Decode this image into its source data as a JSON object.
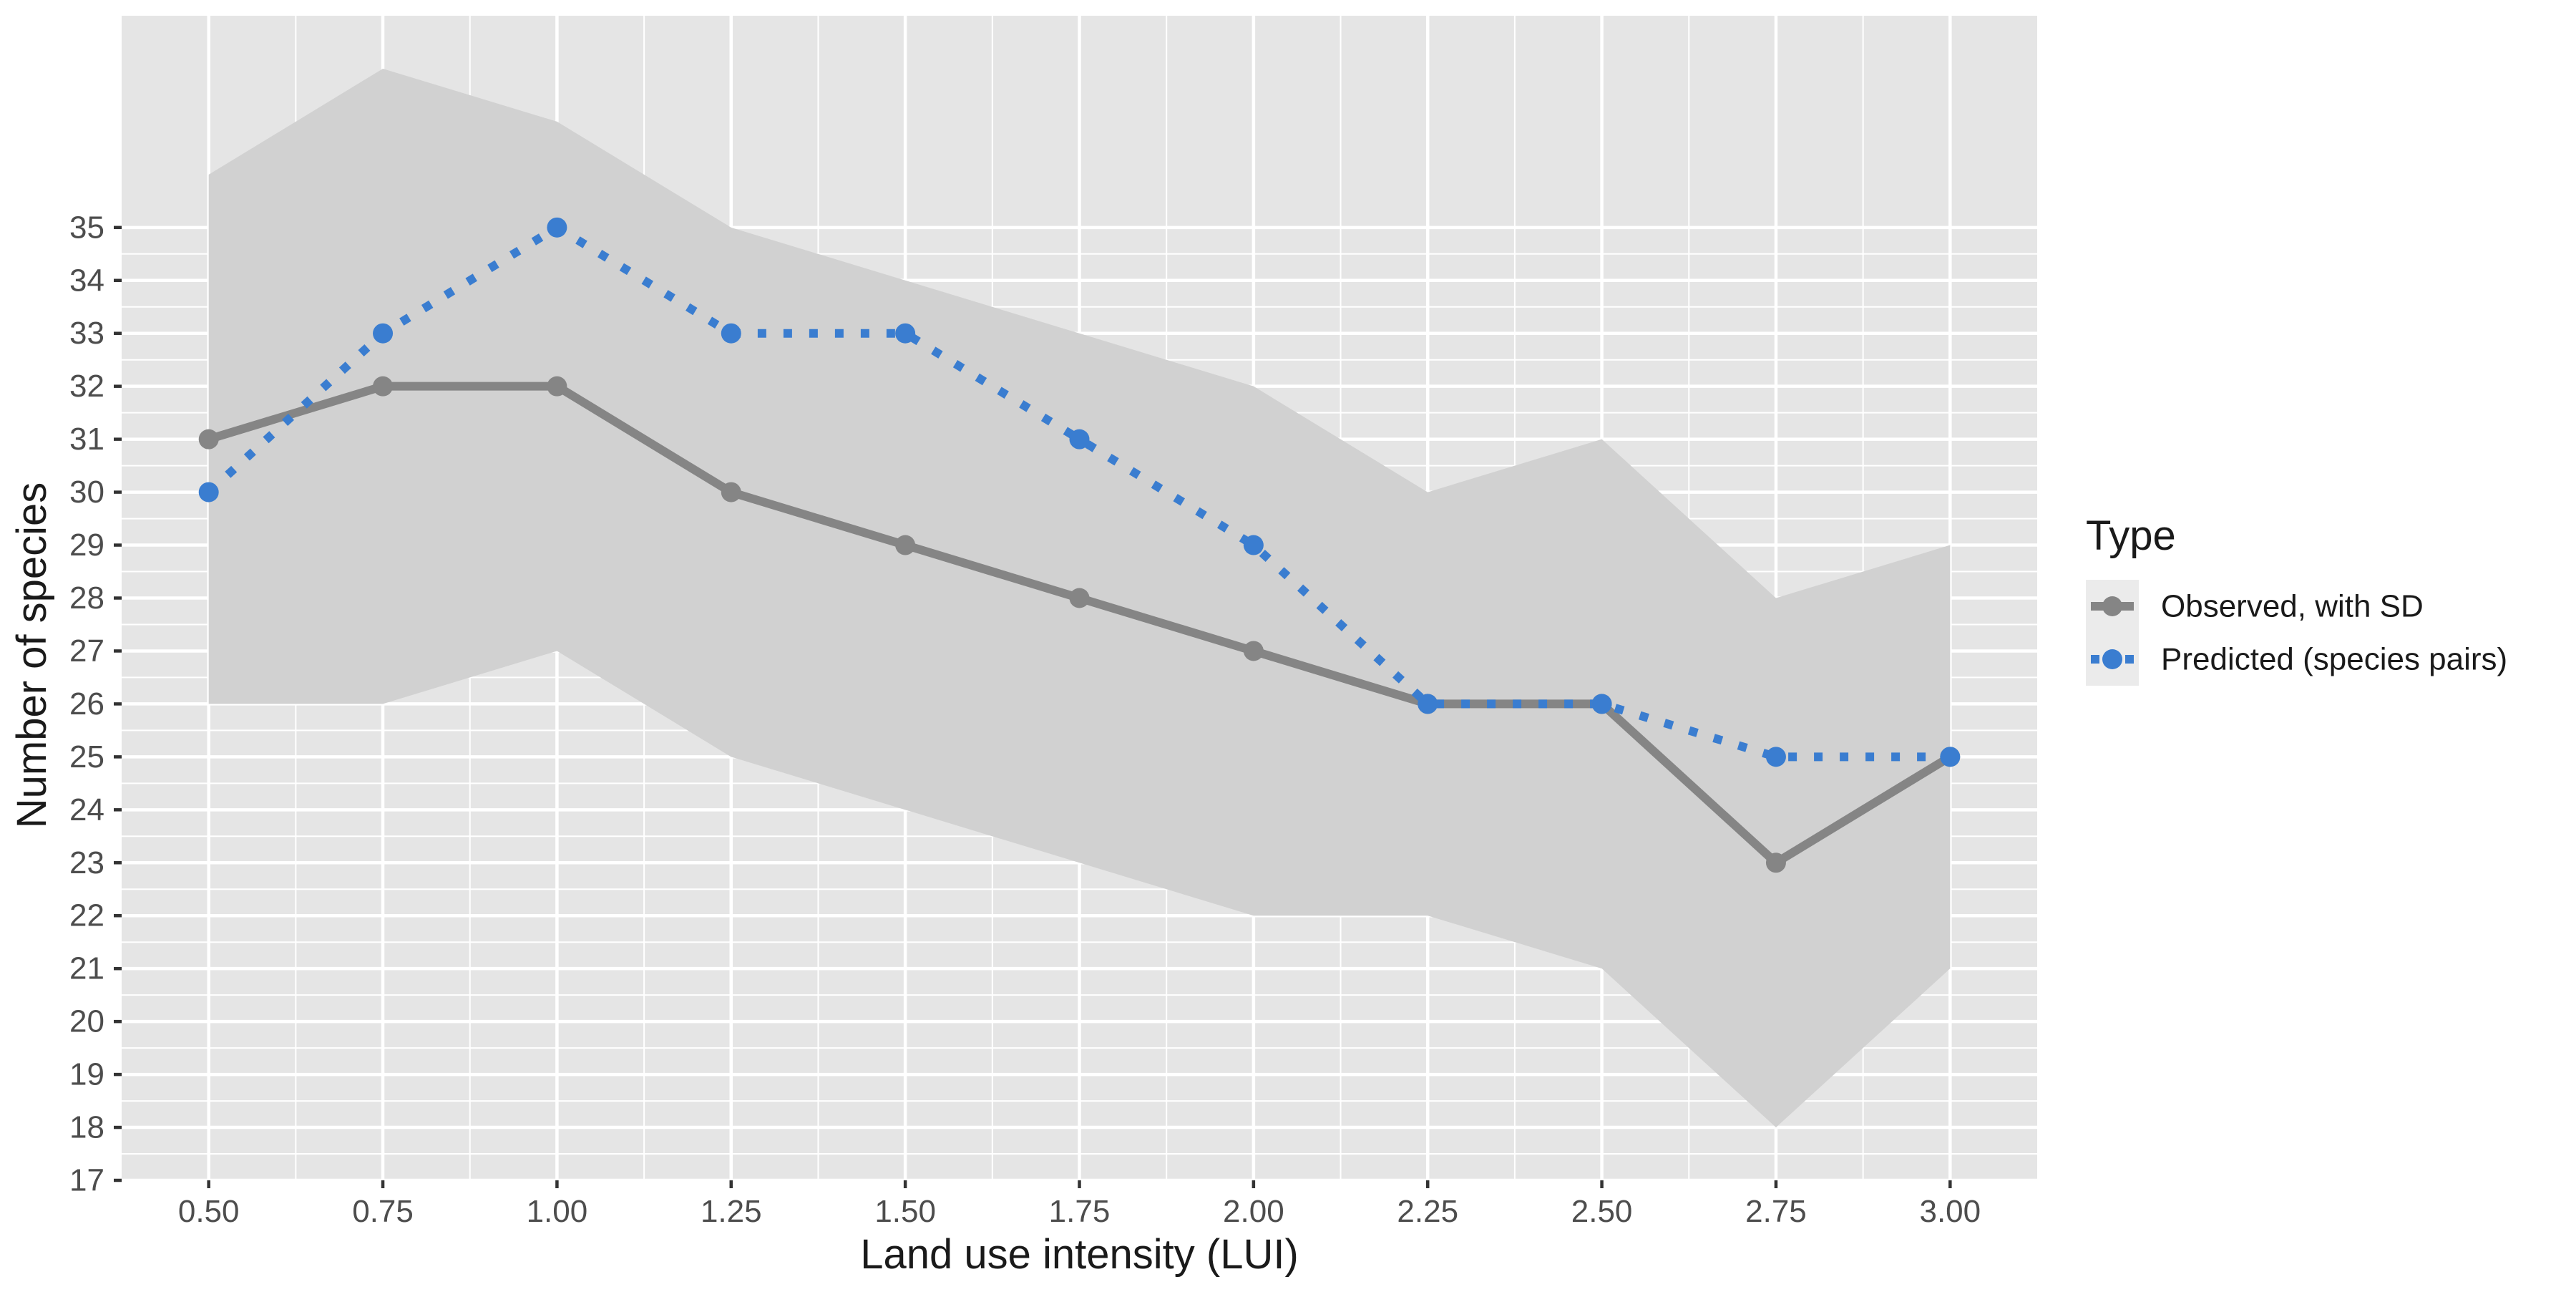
{
  "chart_data": {
    "type": "line",
    "title": "",
    "xlabel": "Land use intensity (LUI)",
    "ylabel": "Number of species",
    "x": [
      0.5,
      0.75,
      1.0,
      1.25,
      1.5,
      1.75,
      2.0,
      2.25,
      2.5,
      2.75,
      3.0
    ],
    "x_tick_labels": [
      "0.50",
      "0.75",
      "1.00",
      "1.25",
      "1.50",
      "1.75",
      "2.00",
      "2.25",
      "2.50",
      "2.75",
      "3.00"
    ],
    "y_ticks": [
      17,
      18,
      19,
      20,
      21,
      22,
      23,
      24,
      25,
      26,
      27,
      28,
      29,
      30,
      31,
      32,
      33,
      34,
      35
    ],
    "xlim": [
      0.375,
      3.125
    ],
    "ylim": [
      17,
      39
    ],
    "grid": true,
    "legend": {
      "title": "Type",
      "position": "right"
    },
    "series": [
      {
        "name": "Observed, with SD",
        "style": "solid",
        "color": "#858585",
        "values": [
          31,
          32,
          32,
          30,
          29,
          28,
          27,
          26,
          26,
          23,
          25
        ],
        "band_lower": [
          26,
          26,
          27,
          25,
          24,
          23,
          22,
          22,
          21,
          18,
          21
        ],
        "band_upper": [
          36,
          38,
          37,
          35,
          34,
          33,
          32,
          30,
          31,
          28,
          29
        ]
      },
      {
        "name": "Predicted (species pairs)",
        "style": "dotted",
        "color": "#3a7dd0",
        "values": [
          30,
          33,
          35,
          33,
          33,
          31,
          29,
          26,
          26,
          25,
          25
        ]
      }
    ],
    "colors": {
      "panel_background": "#e5e5e5",
      "grid": "#ffffff",
      "band": "#d1d1d1",
      "legend_key_background": "#ebebeb",
      "text": "#1a1a1a",
      "tick_text": "#4d4d4d"
    }
  }
}
